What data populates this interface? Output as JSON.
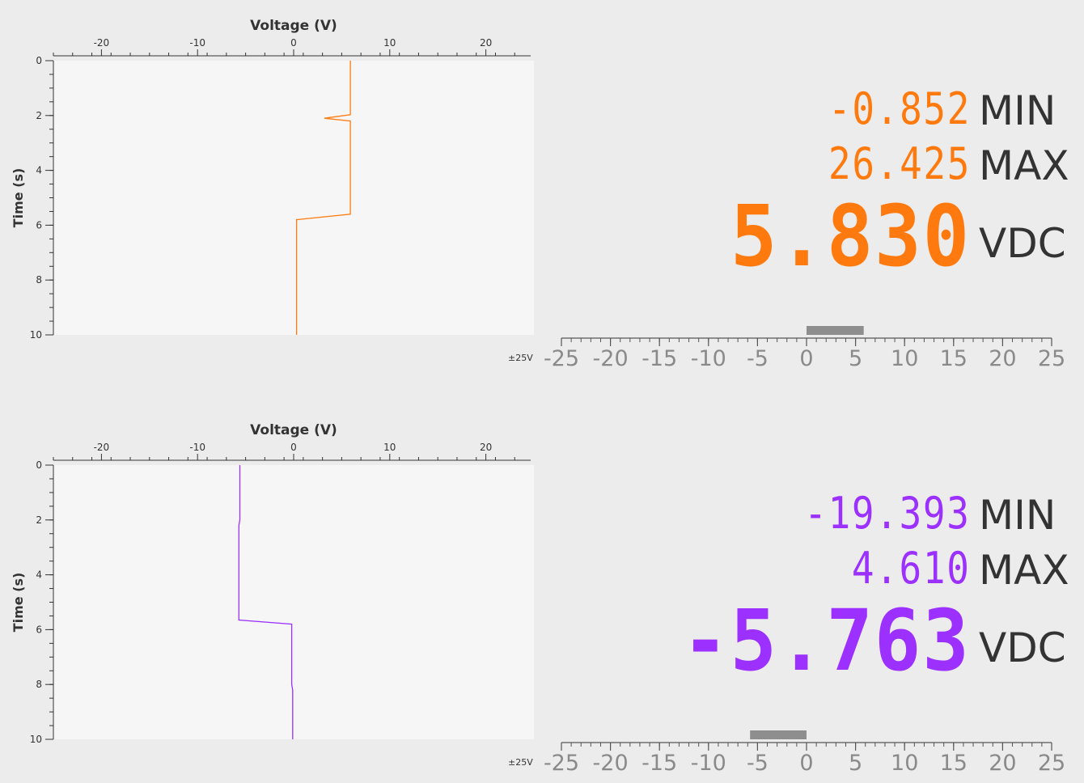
{
  "panels": [
    {
      "id": "ch1",
      "color": "#ff7a0e",
      "min_text": "-0.852",
      "min_label": "MIN",
      "max_text": "26.425",
      "max_label": "MAX",
      "value_text": "5.830",
      "value_label": "VDC",
      "range_label": "±25V",
      "bar_value": 5.83,
      "chart_data": {
        "type": "line",
        "title": "Voltage (V)",
        "xlabel": "Voltage (V)",
        "ylabel": "Time (s)",
        "xlim": [
          -25,
          25
        ],
        "ylim": [
          0,
          10
        ],
        "x_ticks": [
          -20,
          -10,
          0,
          10,
          20
        ],
        "y_ticks": [
          0,
          2,
          4,
          6,
          8,
          10
        ],
        "series": [
          {
            "x": [
              5.9,
              5.9,
              5.9,
              3.2,
              5.9,
              5.9,
              5.9,
              0.3,
              0.3,
              0.3
            ],
            "y": [
              0,
              1.0,
              1.97,
              2.1,
              2.2,
              4.0,
              5.6,
              5.8,
              8.0,
              10
            ]
          }
        ]
      },
      "gauge": {
        "ticks": [
          "-25",
          "-20",
          "-15",
          "-10",
          "-5",
          "0",
          "5",
          "10",
          "15",
          "20",
          "25"
        ]
      }
    },
    {
      "id": "ch2",
      "color": "#9b30ff",
      "min_text": "-19.393",
      "min_label": "MIN",
      "max_text": "4.610",
      "max_label": "MAX",
      "value_text": "-5.763",
      "value_label": "VDC",
      "range_label": "±25V",
      "bar_value": -5.76,
      "chart_data": {
        "type": "line",
        "title": "Voltage (V)",
        "xlabel": "Voltage (V)",
        "ylabel": "Time (s)",
        "xlim": [
          -25,
          25
        ],
        "ylim": [
          0,
          10
        ],
        "x_ticks": [
          -20,
          -10,
          0,
          10,
          20
        ],
        "y_ticks": [
          0,
          2,
          4,
          6,
          8,
          10
        ],
        "series": [
          {
            "x": [
              -5.6,
              -5.6,
              -5.7,
              -5.7,
              -5.7,
              -0.2,
              -0.2,
              -0.1,
              -0.1
            ],
            "y": [
              0,
              2.0,
              2.2,
              5.0,
              5.65,
              5.8,
              8.0,
              8.2,
              10
            ]
          }
        ]
      },
      "gauge": {
        "ticks": [
          "-25",
          "-20",
          "-15",
          "-10",
          "-5",
          "0",
          "5",
          "10",
          "15",
          "20",
          "25"
        ]
      }
    }
  ]
}
